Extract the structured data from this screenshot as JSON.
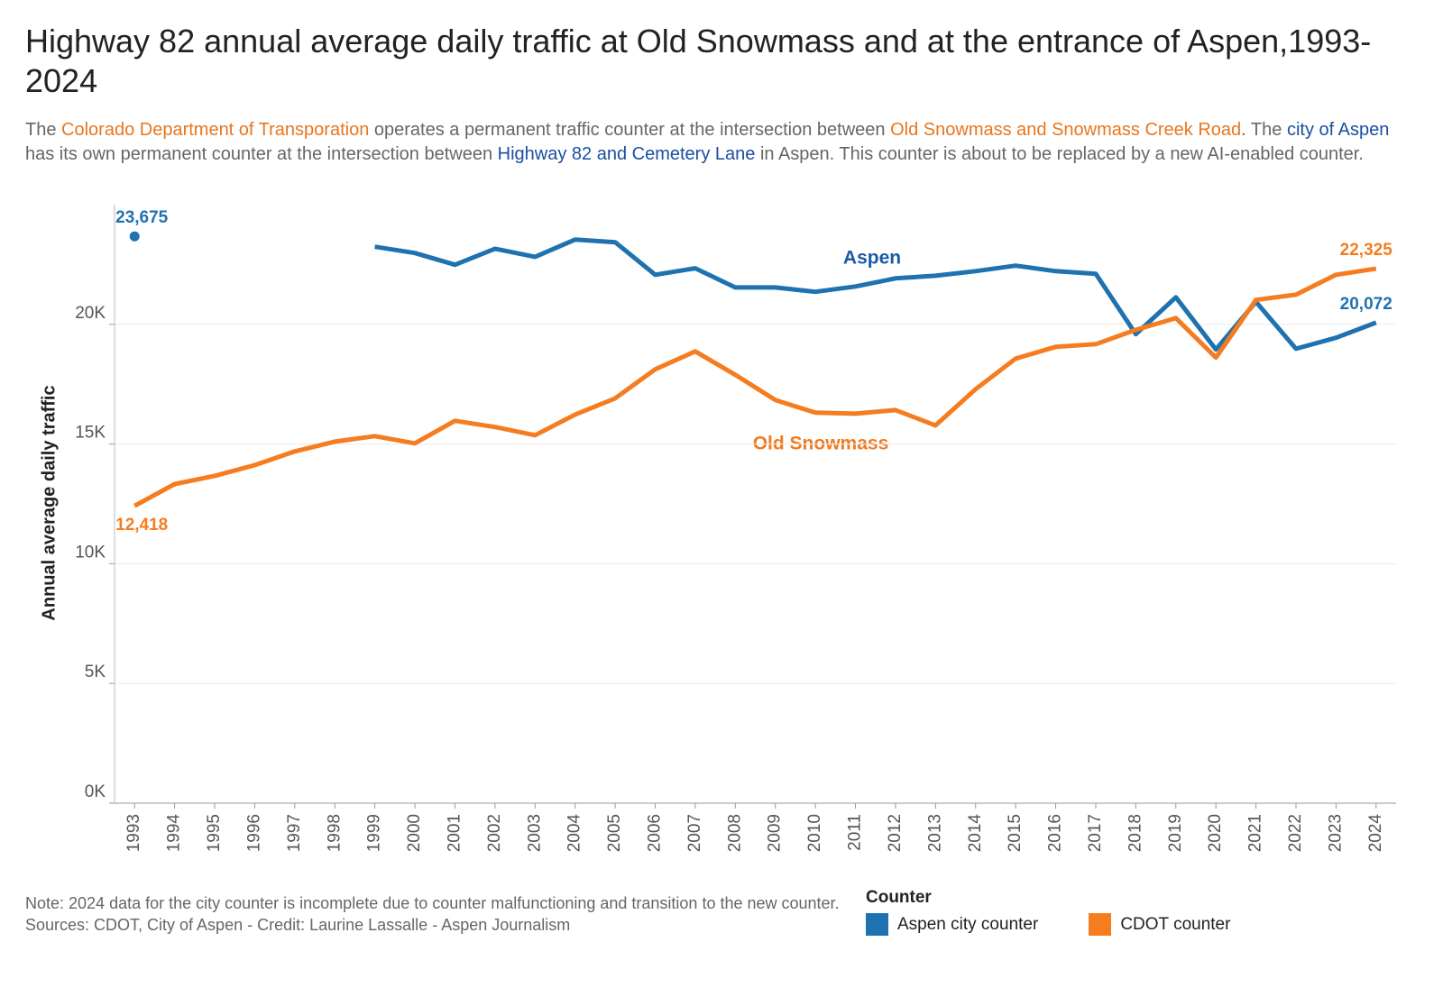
{
  "chart_data": {
    "type": "line",
    "title": "Highway 82 annual average daily traffic at Old Snowmass and at the entrance of Aspen,1993-2024",
    "subtitle": [
      {
        "text": "The ",
        "color": "#666666"
      },
      {
        "text": "Colorado Department of Transporation",
        "color": "#e8761e"
      },
      {
        "text": " operates a permanent traffic counter at the intersection between ",
        "color": "#666666"
      },
      {
        "text": "Old Snowmass and Snowmass Creek Road",
        "color": "#e8761e"
      },
      {
        "text": ". The ",
        "color": "#666666"
      },
      {
        "text": "city of Aspen",
        "color": "#1a4fa0"
      },
      {
        "text": " has its own permanent counter at the intersection between ",
        "color": "#666666"
      },
      {
        "text": "Highway 82 and Cemetery Lane",
        "color": "#1a4fa0"
      },
      {
        "text": " in Aspen. This counter is about to be replaced by a new AI-enabled counter.",
        "color": "#666666"
      }
    ],
    "y_label": "Annual average daily traffic",
    "annotations": [
      "Aspen",
      "Old Snowmass"
    ],
    "notes": [
      "Note: 2024 data for the city counter is incomplete due to counter malfunctioning and transition to the new counter.",
      "Sources: CDOT, City of Aspen - Credit: Laurine Lassalle - Aspen Journalism"
    ],
    "legend_title": "Counter",
    "x": [
      1993,
      1994,
      1995,
      1996,
      1997,
      1998,
      1999,
      2000,
      2001,
      2002,
      2003,
      2004,
      2005,
      2006,
      2007,
      2008,
      2009,
      2010,
      2011,
      2012,
      2013,
      2014,
      2015,
      2016,
      2017,
      2018,
      2019,
      2020,
      2021,
      2022,
      2023,
      2024
    ],
    "xlim": [
      1992.5,
      2024.5
    ],
    "xticks": [
      1993,
      1994,
      1995,
      1996,
      1997,
      1998,
      1999,
      2000,
      2001,
      2002,
      2003,
      2004,
      2005,
      2006,
      2007,
      2008,
      2009,
      2010,
      2011,
      2012,
      2013,
      2014,
      2015,
      2016,
      2017,
      2018,
      2019,
      2020,
      2021,
      2022,
      2023,
      2024
    ],
    "ylim": [
      0,
      25000
    ],
    "yticks": [
      {
        "value": 0,
        "label": "0K"
      },
      {
        "value": 5000,
        "label": "5K"
      },
      {
        "value": 10000,
        "label": "10K"
      },
      {
        "value": 15000,
        "label": "15K"
      },
      {
        "value": 20000,
        "label": "20K"
      }
    ],
    "grid": true,
    "series": [
      {
        "name": "Aspen city counter",
        "color": "#1f72b0",
        "values": [
          23675,
          null,
          null,
          null,
          null,
          null,
          23240,
          22980,
          22490,
          23160,
          22820,
          23540,
          23430,
          22070,
          22340,
          21540,
          21540,
          21360,
          21580,
          21920,
          22030,
          22220,
          22450,
          22220,
          22110,
          19590,
          21130,
          18950,
          20940,
          18980,
          19440,
          20072
        ],
        "value_labels": [
          "23,675",
          null,
          null,
          null,
          null,
          null,
          null,
          null,
          null,
          null,
          null,
          null,
          null,
          null,
          null,
          null,
          null,
          null,
          null,
          null,
          null,
          null,
          null,
          null,
          null,
          null,
          null,
          null,
          null,
          null,
          null,
          "20,072"
        ]
      },
      {
        "name": "CDOT counter",
        "color": "#f57c1f",
        "values": [
          12418,
          13330,
          13670,
          14120,
          14690,
          15100,
          15330,
          15030,
          15970,
          15710,
          15370,
          16230,
          16910,
          18120,
          18870,
          17890,
          16840,
          16310,
          16270,
          16420,
          15780,
          17290,
          18570,
          19060,
          19170,
          19770,
          20260,
          18610,
          21020,
          21240,
          22070,
          22325
        ],
        "value_labels": [
          "12,418",
          null,
          null,
          null,
          null,
          null,
          null,
          null,
          null,
          null,
          null,
          null,
          null,
          null,
          null,
          null,
          null,
          null,
          null,
          null,
          null,
          null,
          null,
          null,
          null,
          null,
          null,
          null,
          null,
          null,
          null,
          "22,325"
        ]
      }
    ]
  }
}
